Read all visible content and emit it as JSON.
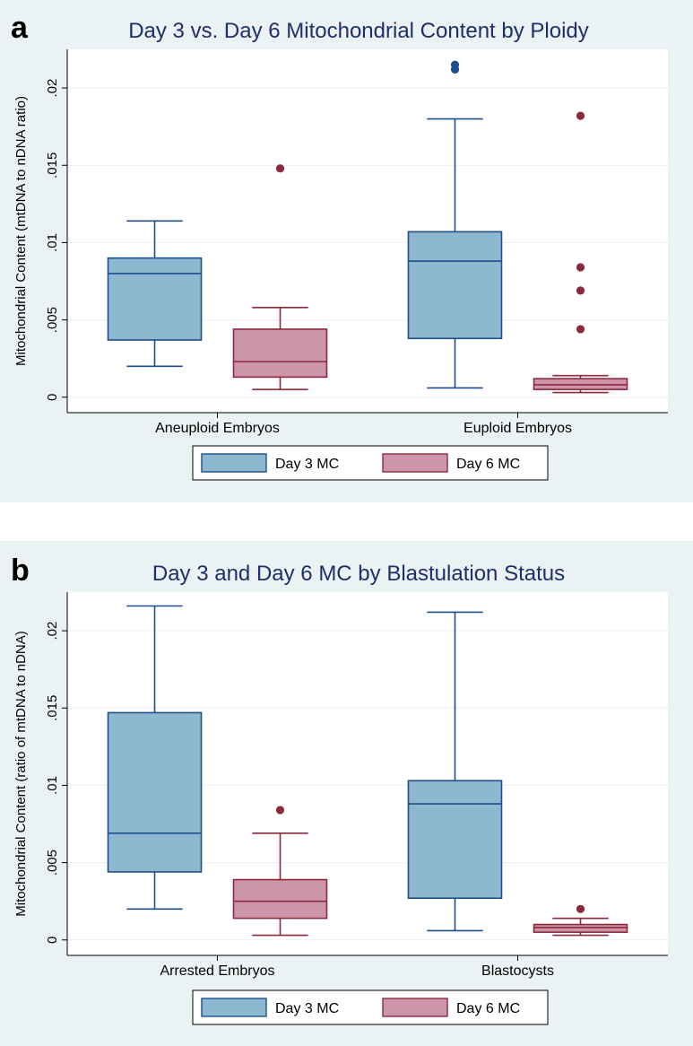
{
  "colors": {
    "day3_fill": "#8db8cf",
    "day3_line": "#1f4e8c",
    "day6_fill": "#cc95aa",
    "day6_line": "#8c2a3c",
    "title": "#1e2f6b",
    "panel_bg": "#eaf2f3"
  },
  "chart_data": [
    {
      "type": "box",
      "panel_letter": "a",
      "title": "Day 3 vs. Day 6 Mitochondrial Content by Ploidy",
      "ylabel": "Mitochondrial Content (mtDNA to nDNA ratio)",
      "xlabel": "",
      "ylim": [
        -0.001,
        0.0225
      ],
      "yticks": [
        0,
        0.005,
        0.01,
        0.015,
        0.02
      ],
      "ytick_labels": [
        "0",
        ".005",
        ".01",
        ".015",
        ".02"
      ],
      "categories": [
        "Aneuploid Embryos",
        "Euploid Embryos"
      ],
      "legend": [
        "Day 3 MC",
        "Day 6 MC"
      ],
      "series": [
        {
          "name": "Day 3 MC",
          "boxes": [
            {
              "whisker_low": 0.002,
              "q1": 0.0037,
              "median": 0.008,
              "q3": 0.009,
              "whisker_high": 0.0114,
              "outliers": []
            },
            {
              "whisker_low": 0.0006,
              "q1": 0.0038,
              "median": 0.0088,
              "q3": 0.0107,
              "whisker_high": 0.018,
              "outliers": [
                0.0212,
                0.0215
              ]
            }
          ]
        },
        {
          "name": "Day 6 MC",
          "boxes": [
            {
              "whisker_low": 0.0005,
              "q1": 0.0013,
              "median": 0.0023,
              "q3": 0.0044,
              "whisker_high": 0.0058,
              "outliers": [
                0.0148
              ]
            },
            {
              "whisker_low": 0.0003,
              "q1": 0.0005,
              "median": 0.0008,
              "q3": 0.0012,
              "whisker_high": 0.0014,
              "outliers": [
                0.0044,
                0.0069,
                0.0084,
                0.0182
              ]
            }
          ]
        }
      ]
    },
    {
      "type": "box",
      "panel_letter": "b",
      "title": "Day 3 and Day 6 MC by Blastulation Status",
      "ylabel": "Mitochondrial Content (ratio of mtDNA to nDNA)",
      "xlabel": "",
      "ylim": [
        -0.001,
        0.0225
      ],
      "yticks": [
        0,
        0.005,
        0.01,
        0.015,
        0.02
      ],
      "ytick_labels": [
        "0",
        ".005",
        ".01",
        ".015",
        ".02"
      ],
      "categories": [
        "Arrested Embryos",
        "Blastocysts"
      ],
      "legend": [
        "Day 3 MC",
        "Day 6 MC"
      ],
      "series": [
        {
          "name": "Day 3 MC",
          "boxes": [
            {
              "whisker_low": 0.002,
              "q1": 0.0044,
              "median": 0.0069,
              "q3": 0.0147,
              "whisker_high": 0.0216,
              "outliers": []
            },
            {
              "whisker_low": 0.0006,
              "q1": 0.0027,
              "median": 0.0088,
              "q3": 0.0103,
              "whisker_high": 0.0212,
              "outliers": []
            }
          ]
        },
        {
          "name": "Day 6 MC",
          "boxes": [
            {
              "whisker_low": 0.0003,
              "q1": 0.0014,
              "median": 0.0025,
              "q3": 0.0039,
              "whisker_high": 0.0069,
              "outliers": [
                0.0084
              ]
            },
            {
              "whisker_low": 0.0003,
              "q1": 0.0005,
              "median": 0.0008,
              "q3": 0.001,
              "whisker_high": 0.0014,
              "outliers": [
                0.002
              ]
            }
          ]
        }
      ]
    }
  ]
}
